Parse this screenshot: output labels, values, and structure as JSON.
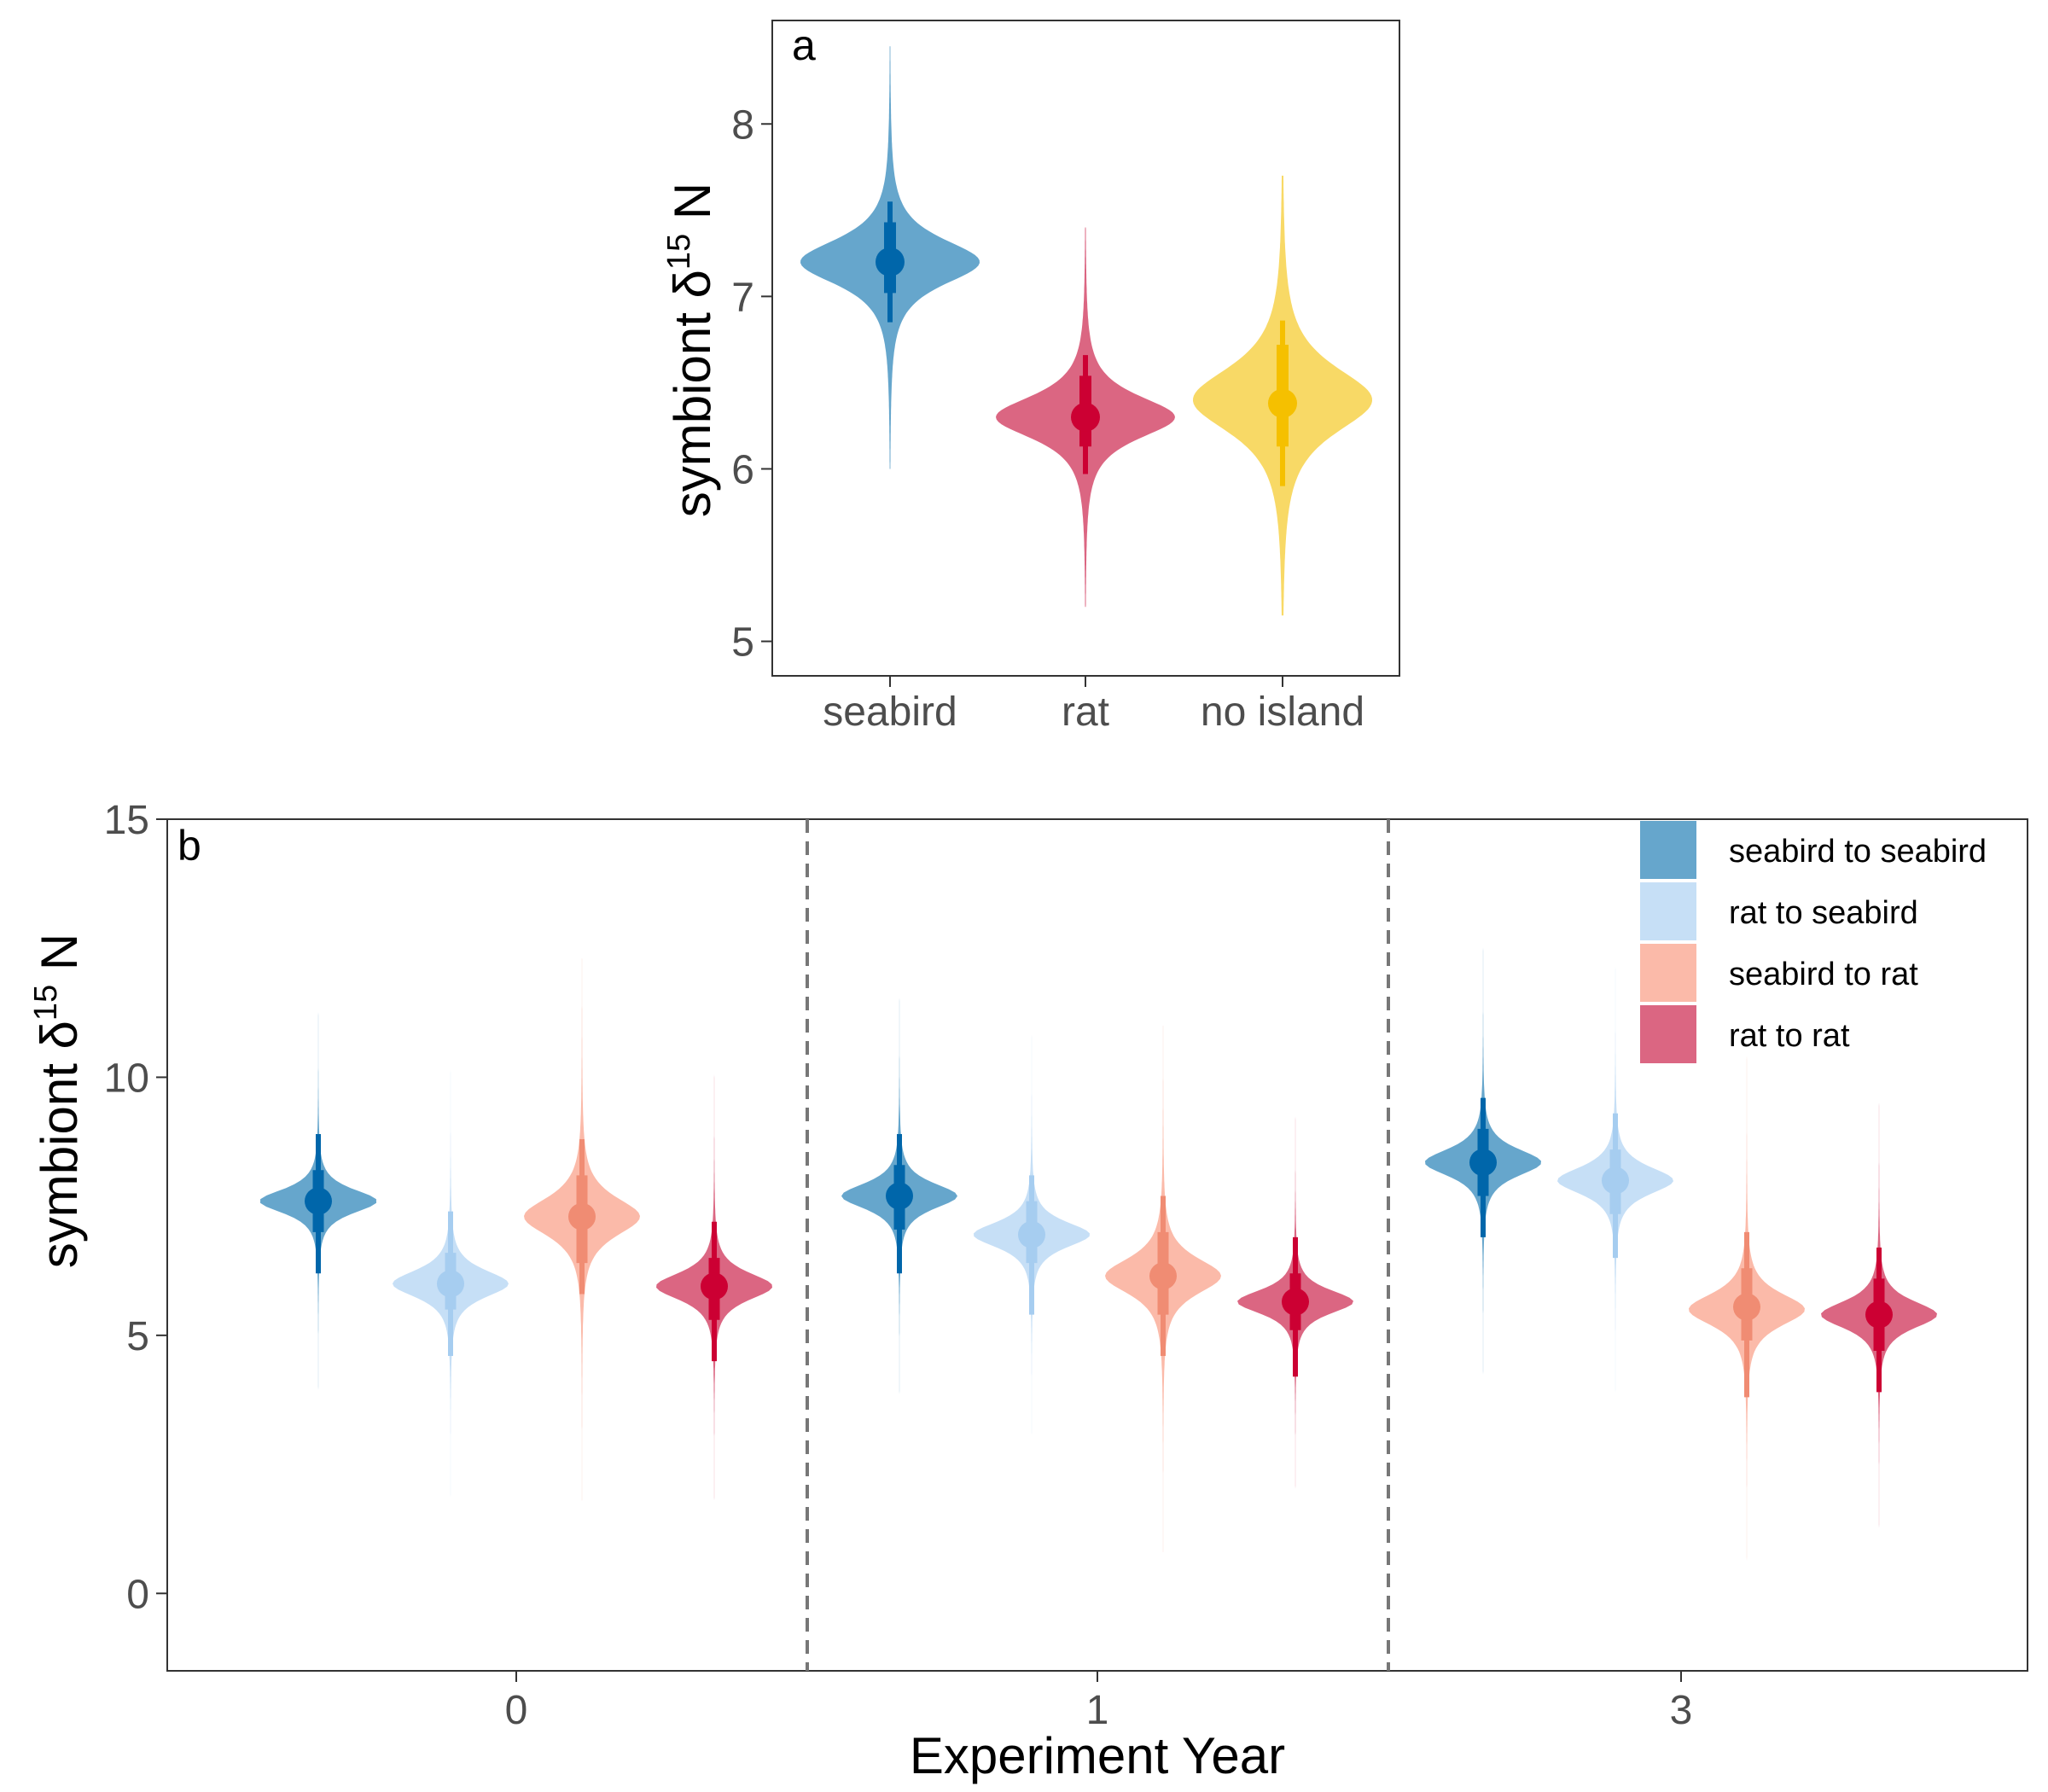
{
  "chart_data": [
    {
      "type": "violin",
      "panel_label": "a",
      "ylabel": "symbiont δ15 N",
      "ylim": [
        4.8,
        8.6
      ],
      "yticks": [
        5,
        6,
        7,
        8
      ],
      "grid": false,
      "categories": [
        "seabird",
        "rat",
        "no island"
      ],
      "series": [
        {
          "category": "seabird",
          "color": "#0066aa",
          "fill": "#66a6cc",
          "median": 7.2,
          "interval_66": [
            7.02,
            7.43
          ],
          "interval_95": [
            6.85,
            7.55
          ],
          "range": [
            6.0,
            8.45
          ],
          "mode": 7.2,
          "sd": 0.16
        },
        {
          "category": "rat",
          "color": "#cc0033",
          "fill": "#db6682",
          "median": 6.3,
          "interval_66": [
            6.13,
            6.54
          ],
          "interval_95": [
            5.97,
            6.66
          ],
          "range": [
            5.2,
            7.4
          ],
          "mode": 6.3,
          "sd": 0.15
        },
        {
          "category": "no island",
          "color": "#f5c000",
          "fill": "#f8d966",
          "median": 6.38,
          "interval_66": [
            6.13,
            6.72
          ],
          "interval_95": [
            5.9,
            6.86
          ],
          "range": [
            5.15,
            7.7
          ],
          "mode": 6.4,
          "sd": 0.23
        }
      ]
    },
    {
      "type": "violin",
      "panel_label": "b",
      "xlabel": "Experiment Year",
      "ylabel": "symbiont δ15 N",
      "ylim": [
        -1.5,
        15.0
      ],
      "yticks": [
        0,
        5,
        10,
        15
      ],
      "grid": false,
      "categories": [
        "0",
        "1",
        "3"
      ],
      "group_separators": "dashed",
      "legend": {
        "position": "top-right",
        "entries": [
          {
            "label": "seabird to seabird",
            "fill": "#66a6cc"
          },
          {
            "label": "rat to seabird",
            "fill": "#c6dff6"
          },
          {
            "label": "seabird to rat",
            "fill": "#fbbaa9"
          },
          {
            "label": "rat to rat",
            "fill": "#db6682"
          }
        ]
      },
      "series": [
        {
          "name": "seabird to seabird",
          "color": "#0066aa",
          "fill": "#66a6cc",
          "year": "0",
          "median": 7.6,
          "interval_66": [
            7.0,
            8.2
          ],
          "interval_95": [
            6.2,
            8.9
          ],
          "range": [
            2.2,
            13.8
          ],
          "mode": 7.6,
          "sd": 0.28
        },
        {
          "name": "rat to seabird",
          "color": "#a6cdf0",
          "fill": "#c6dff6",
          "year": "0",
          "median": 6.0,
          "interval_66": [
            5.5,
            6.6
          ],
          "interval_95": [
            4.6,
            7.4
          ],
          "range": [
            1.0,
            10.2
          ],
          "mode": 6.0,
          "sd": 0.32
        },
        {
          "name": "seabird to rat",
          "color": "#f08c73",
          "fill": "#fbbaa9",
          "year": "0",
          "median": 7.3,
          "interval_66": [
            6.4,
            8.1
          ],
          "interval_95": [
            5.8,
            8.8
          ],
          "range": [
            1.8,
            12.3
          ],
          "mode": 7.3,
          "sd": 0.45
        },
        {
          "name": "rat to rat",
          "color": "#cc0033",
          "fill": "#db6682",
          "year": "0",
          "median": 5.95,
          "interval_66": [
            5.3,
            6.5
          ],
          "interval_95": [
            4.5,
            7.2
          ],
          "range": [
            0.8,
            10.8
          ],
          "mode": 5.95,
          "sd": 0.32
        },
        {
          "name": "seabird to seabird",
          "color": "#0066aa",
          "fill": "#66a6cc",
          "year": "1",
          "median": 7.7,
          "interval_66": [
            7.05,
            8.3
          ],
          "interval_95": [
            6.2,
            8.9
          ],
          "range": [
            2.2,
            12.8
          ],
          "mode": 7.7,
          "sd": 0.3
        },
        {
          "name": "rat to seabird",
          "color": "#a6cdf0",
          "fill": "#c6dff6",
          "year": "1",
          "median": 6.95,
          "interval_66": [
            6.4,
            7.6
          ],
          "interval_95": [
            5.4,
            8.1
          ],
          "range": [
            1.8,
            11.0
          ],
          "mode": 6.95,
          "sd": 0.3
        },
        {
          "name": "seabird to rat",
          "color": "#f08c73",
          "fill": "#fbbaa9",
          "year": "1",
          "median": 6.15,
          "interval_66": [
            5.4,
            7.0
          ],
          "interval_95": [
            4.6,
            7.7
          ],
          "range": [
            0.8,
            11.0
          ],
          "mode": 6.15,
          "sd": 0.42
        },
        {
          "name": "rat to rat",
          "color": "#cc0033",
          "fill": "#db6682",
          "year": "1",
          "median": 5.65,
          "interval_66": [
            5.1,
            6.2
          ],
          "interval_95": [
            4.2,
            6.9
          ],
          "range": [
            0.4,
            10.8
          ],
          "mode": 5.65,
          "sd": 0.28
        },
        {
          "name": "seabird to seabird",
          "color": "#0066aa",
          "fill": "#66a6cc",
          "year": "3",
          "median": 8.35,
          "interval_66": [
            7.7,
            9.0
          ],
          "interval_95": [
            6.9,
            9.6
          ],
          "range": [
            2.8,
            13.3
          ],
          "mode": 8.35,
          "sd": 0.32
        },
        {
          "name": "rat to seabird",
          "color": "#a6cdf0",
          "fill": "#c6dff6",
          "year": "3",
          "median": 8.0,
          "interval_66": [
            7.35,
            8.6
          ],
          "interval_95": [
            6.5,
            9.3
          ],
          "range": [
            3.0,
            12.5
          ],
          "mode": 8.0,
          "sd": 0.32
        },
        {
          "name": "seabird to rat",
          "color": "#f08c73",
          "fill": "#fbbaa9",
          "year": "3",
          "median": 5.55,
          "interval_66": [
            4.9,
            6.3
          ],
          "interval_95": [
            3.8,
            7.0
          ],
          "range": [
            0.5,
            10.8
          ],
          "mode": 5.5,
          "sd": 0.38
        },
        {
          "name": "rat to rat",
          "color": "#cc0033",
          "fill": "#db6682",
          "year": "3",
          "median": 5.4,
          "interval_66": [
            4.7,
            6.1
          ],
          "interval_95": [
            3.9,
            6.7
          ],
          "range": [
            -0.3,
            10.6
          ],
          "mode": 5.4,
          "sd": 0.32
        }
      ]
    }
  ]
}
